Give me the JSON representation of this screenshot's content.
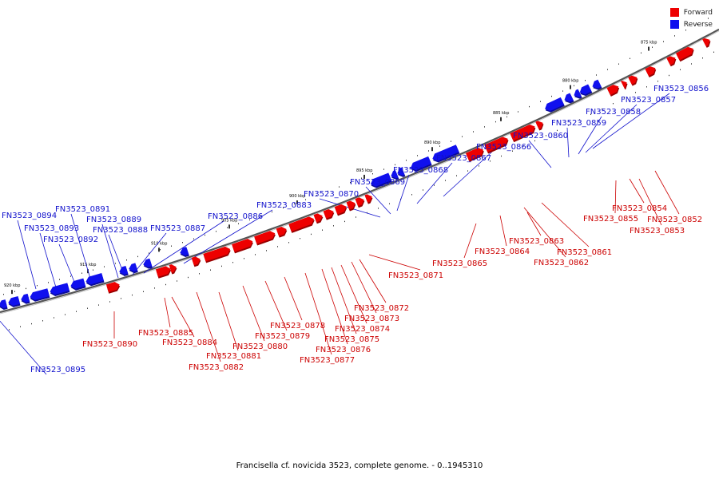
{
  "legend": [
    {
      "label": "Forward",
      "color": "#ee0000"
    },
    {
      "label": "Reverse",
      "color": "#1010ee"
    }
  ],
  "caption": "Francisella cf. novicida 3523, complete genome. - 0..1945310",
  "ticks": [
    "875 kbp",
    "880 kbp",
    "885 kbp",
    "890 kbp",
    "895 kbp",
    "900 kbp",
    "905 kbp",
    "910 kbp",
    "915 kbp",
    "920 kbp"
  ],
  "genes": {
    "reverse": [
      "FN3523_0856",
      "FN3523_0857",
      "FN3523_0858",
      "FN3523_0859",
      "FN3523_0860",
      "FN3523_0866",
      "FN3523_0867",
      "FN3523_0868",
      "FN3523_0869",
      "FN3523_0870",
      "FN3523_0883",
      "FN3523_0886",
      "FN3523_0887",
      "FN3523_0888",
      "FN3523_0889",
      "FN3523_0891",
      "FN3523_0892",
      "FN3523_0893",
      "FN3523_0894",
      "FN3523_0895"
    ],
    "forward": [
      "FN3523_0852",
      "FN3523_0853",
      "FN3523_0854",
      "FN3523_0855",
      "FN3523_0861",
      "FN3523_0862",
      "FN3523_0863",
      "FN3523_0864",
      "FN3523_0865",
      "FN3523_0871",
      "FN3523_0872",
      "FN3523_0873",
      "FN3523_0874",
      "FN3523_0875",
      "FN3523_0876",
      "FN3523_0877",
      "FN3523_0878",
      "FN3523_0879",
      "FN3523_0880",
      "FN3523_0881",
      "FN3523_0882",
      "FN3523_0884",
      "FN3523_0885",
      "FN3523_0890"
    ]
  }
}
